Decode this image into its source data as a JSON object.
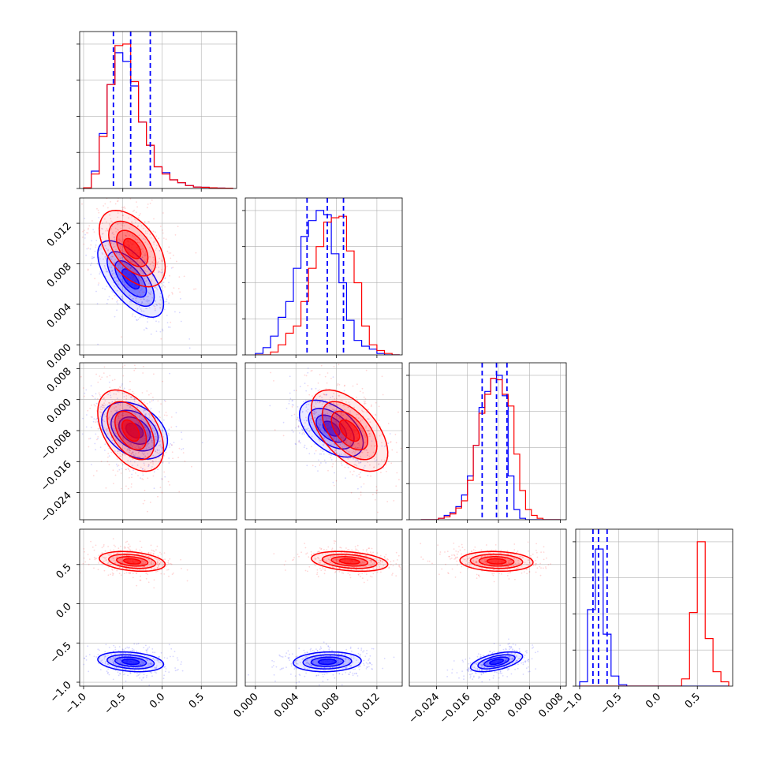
{
  "chart_data": {
    "type": "corner",
    "colors": {
      "blue": "#0000ff",
      "red": "#ff0000"
    },
    "grid": true,
    "series": [
      {
        "color": "blue"
      },
      {
        "color": "red"
      }
    ],
    "params": [
      {
        "range": [
          -1.05,
          0.95
        ],
        "ticks": [
          -1.0,
          -0.5,
          0.0,
          0.5
        ],
        "tick_labels": [
          "−1.0",
          "−0.5",
          "0.0",
          "0.5"
        ]
      },
      {
        "range": [
          -0.001,
          0.0145
        ],
        "ticks": [
          0.0,
          0.004,
          0.008,
          0.012
        ],
        "tick_labels": [
          "0.000",
          "0.004",
          "0.008",
          "0.012"
        ]
      },
      {
        "range": [
          -0.031,
          0.0095
        ],
        "ticks": [
          -0.024,
          -0.016,
          -0.008,
          0.0,
          0.008
        ],
        "tick_labels": [
          "−0.024",
          "−0.016",
          "−0.008",
          "0.000",
          "0.008"
        ]
      },
      {
        "range": [
          -1.05,
          0.95
        ],
        "ticks": [
          -1.0,
          -0.5,
          0.0,
          0.5
        ],
        "tick_labels": [
          "−1.0",
          "−0.5",
          "0.0",
          "0.5"
        ]
      }
    ],
    "histograms": [
      {
        "param": 0,
        "edges": [
          -1.0,
          -0.9,
          -0.8,
          -0.7,
          -0.6,
          -0.5,
          -0.4,
          -0.3,
          -0.2,
          -0.1,
          0.0,
          0.1,
          0.2,
          0.3,
          0.4,
          0.5,
          0.6,
          0.7,
          0.8,
          0.9
        ],
        "blue": [
          0.005,
          0.12,
          0.38,
          0.72,
          0.94,
          0.88,
          0.71,
          0.46,
          0.3,
          0.15,
          0.11,
          0.06,
          0.04,
          0.02,
          0.01,
          0.008,
          0.005,
          0.003,
          0.002
        ],
        "red": [
          0.005,
          0.1,
          0.36,
          0.72,
          0.99,
          1.0,
          0.74,
          0.46,
          0.3,
          0.15,
          0.1,
          0.06,
          0.04,
          0.02,
          0.01,
          0.008,
          0.005,
          0.003,
          0.002
        ],
        "quantiles": [
          -0.62,
          -0.4,
          -0.15
        ]
      },
      {
        "param": 1,
        "edges": [
          0.0,
          0.00075,
          0.0015,
          0.00225,
          0.003,
          0.00375,
          0.0045,
          0.00525,
          0.006,
          0.00675,
          0.0075,
          0.00825,
          0.009,
          0.00975,
          0.0105,
          0.01125,
          0.012,
          0.01275,
          0.0135,
          0.01425
        ],
        "blue": [
          0.01,
          0.05,
          0.13,
          0.26,
          0.37,
          0.6,
          0.82,
          0.93,
          1.0,
          0.97,
          0.7,
          0.5,
          0.24,
          0.1,
          0.06,
          0.04,
          0.01,
          0.0,
          0.0
        ],
        "red": [
          0.0,
          0.0,
          0.02,
          0.07,
          0.15,
          0.2,
          0.37,
          0.6,
          0.75,
          0.92,
          0.95,
          0.96,
          0.72,
          0.5,
          0.2,
          0.07,
          0.03,
          0.01,
          0.0
        ],
        "quantiles": [
          0.0051,
          0.0071,
          0.0087
        ]
      },
      {
        "param": 2,
        "edges": [
          -0.028,
          -0.0265,
          -0.025,
          -0.0235,
          -0.022,
          -0.0205,
          -0.019,
          -0.0175,
          -0.016,
          -0.0145,
          -0.013,
          -0.0115,
          -0.01,
          -0.0085,
          -0.007,
          -0.0055,
          -0.004,
          -0.0025,
          -0.001,
          0.0005,
          0.002,
          0.0035,
          0.005,
          0.0065,
          0.008
        ],
        "blue": [
          0.0,
          0.0,
          0.0,
          0.01,
          0.03,
          0.05,
          0.09,
          0.17,
          0.3,
          0.51,
          0.77,
          0.88,
          0.97,
          0.99,
          0.85,
          0.3,
          0.07,
          0.01,
          0.0,
          0.0,
          0.0,
          0.0,
          0.0,
          0.0
        ],
        "red": [
          0.0,
          0.0,
          0.0,
          0.01,
          0.02,
          0.04,
          0.08,
          0.13,
          0.27,
          0.51,
          0.73,
          0.86,
          0.97,
          0.96,
          0.86,
          0.78,
          0.45,
          0.2,
          0.07,
          0.03,
          0.01,
          0.0,
          0.0,
          0.0
        ],
        "quantiles": [
          -0.0122,
          -0.0085,
          -0.0058
        ]
      },
      {
        "param": 3,
        "edges": [
          -1.0,
          -0.9,
          -0.8,
          -0.7,
          -0.6,
          -0.5,
          -0.4,
          -0.3,
          -0.2,
          -0.1,
          0.0,
          0.1,
          0.2,
          0.3,
          0.4,
          0.5,
          0.6,
          0.7,
          0.8,
          0.9
        ],
        "blue": [
          0.03,
          0.53,
          0.95,
          0.36,
          0.07,
          0.01,
          0.0,
          0.0,
          0.0,
          0.0,
          0.0,
          0.0,
          0.0,
          0.0,
          0.0,
          0.0,
          0.0,
          0.0,
          0.0
        ],
        "red": [
          0.0,
          0.0,
          0.0,
          0.0,
          0.0,
          0.0,
          0.0,
          0.0,
          0.0,
          0.0,
          0.0,
          0.0,
          0.0,
          0.05,
          0.51,
          1.0,
          0.33,
          0.1,
          0.03
        ],
        "quantiles": [
          -0.83,
          -0.76,
          -0.65
        ]
      }
    ],
    "pairs": [
      {
        "x": 0,
        "y": 1,
        "blue": {
          "mean": [
            -0.4,
            0.0065
          ],
          "sd": [
            0.2,
            0.0018
          ],
          "rho": -0.65,
          "n": 420
        },
        "red": {
          "mean": [
            -0.38,
            0.0095
          ],
          "sd": [
            0.2,
            0.0018
          ],
          "rho": -0.5,
          "n": 420
        }
      },
      {
        "x": 0,
        "y": 2,
        "blue": {
          "mean": [
            -0.35,
            -0.008
          ],
          "sd": [
            0.2,
            0.0035
          ],
          "rho": -0.35,
          "n": 420
        },
        "red": {
          "mean": [
            -0.4,
            -0.008
          ],
          "sd": [
            0.2,
            0.005
          ],
          "rho": -0.45,
          "n": 420
        }
      },
      {
        "x": 1,
        "y": 2,
        "blue": {
          "mean": [
            0.0075,
            -0.0075
          ],
          "sd": [
            0.0015,
            0.0035
          ],
          "rho": -0.5,
          "n": 420
        },
        "red": {
          "mean": [
            0.0093,
            -0.008
          ],
          "sd": [
            0.0018,
            0.005
          ],
          "rho": -0.55,
          "n": 420
        }
      },
      {
        "x": 0,
        "y": 3,
        "blue": {
          "mean": [
            -0.4,
            -0.74
          ],
          "sd": [
            0.2,
            0.06
          ],
          "rho": -0.25,
          "n": 420
        },
        "red": {
          "mean": [
            -0.38,
            0.54
          ],
          "sd": [
            0.2,
            0.06
          ],
          "rho": -0.3,
          "n": 420
        }
      },
      {
        "x": 1,
        "y": 3,
        "blue": {
          "mean": [
            0.0071,
            -0.74
          ],
          "sd": [
            0.0016,
            0.06
          ],
          "rho": 0.1,
          "n": 420
        },
        "red": {
          "mean": [
            0.0093,
            0.54
          ],
          "sd": [
            0.0018,
            0.06
          ],
          "rho": -0.3,
          "n": 420
        }
      },
      {
        "x": 2,
        "y": 3,
        "blue": {
          "mean": [
            -0.0085,
            -0.74
          ],
          "sd": [
            0.0032,
            0.06
          ],
          "rho": 0.55,
          "n": 420
        },
        "red": {
          "mean": [
            -0.0085,
            0.54
          ],
          "sd": [
            0.0045,
            0.06
          ],
          "rho": -0.1,
          "n": 420
        }
      }
    ]
  }
}
